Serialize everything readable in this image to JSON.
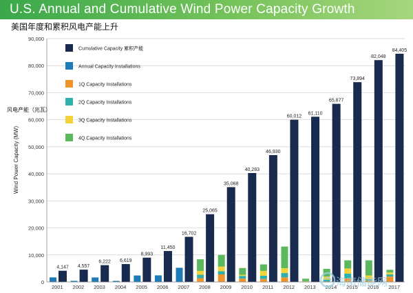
{
  "header": {
    "title": "U.S. Annual and Cumulative Wind Power Capacity Growth",
    "subtitle": "美国年度和累积风电产能上升"
  },
  "watermark": {
    "text": "海南储能网"
  },
  "colors": {
    "banner_start": "#3aa84a",
    "banner_end": "#a6d67d",
    "cumulative": "#182a4e",
    "annual": "#1f7ab8",
    "q1": "#f0932a",
    "q2": "#2fb0ad",
    "q3": "#f3d23a",
    "q4": "#5cb85c"
  },
  "chart_data": {
    "type": "bar",
    "categories": [
      "2001",
      "2002",
      "2003",
      "2004",
      "2005",
      "2006",
      "2007",
      "2008",
      "2009",
      "2010",
      "2011",
      "2012",
      "2013",
      "2014",
      "2015",
      "2016",
      "2017"
    ],
    "ylabel": "Wind Power Capacity (MW)",
    "ylabel_cn": "风电产能（兆瓦）",
    "ylim": [
      0,
      90000
    ],
    "yticks": [
      0,
      10000,
      20000,
      30000,
      40000,
      50000,
      60000,
      70000,
      80000,
      90000
    ],
    "ytick_labels": [
      "0",
      "10,000",
      "20,000",
      "30,000",
      "40,000",
      "50,000",
      "60,000",
      "70,000",
      "80,000",
      "90,000"
    ],
    "grid": true,
    "legend_position": "top-left",
    "series": [
      {
        "name": "Cumulative Capacity 累积产能",
        "key": "cumulative",
        "values": [
          4147,
          4557,
          6222,
          6619,
          8993,
          11450,
          16702,
          25065,
          35068,
          40283,
          46930,
          60012,
          61110,
          65877,
          73894,
          82048,
          84405
        ],
        "labels": [
          "4,147",
          "4,557",
          "6,222",
          "6,619",
          "8,993",
          "11,450",
          "16,702",
          "25,065",
          "35,068",
          "40,283",
          "46,930",
          "60,012",
          "61,110",
          "65,877",
          "73,894",
          "82,048",
          "84,405"
        ]
      },
      {
        "name": "Annual Capacity Installations",
        "key": "annual",
        "values": [
          1700,
          410,
          1670,
          400,
          2400,
          2450,
          5250,
          null,
          null,
          null,
          null,
          null,
          null,
          null,
          null,
          null,
          null
        ]
      },
      {
        "name": "1Q Capacity Installations",
        "key": "q1",
        "values": [
          null,
          null,
          null,
          null,
          null,
          null,
          null,
          1400,
          2800,
          1250,
          1100,
          1700,
          100,
          150,
          1300,
          600,
          2000
        ]
      },
      {
        "name": "2Q Capacity Installations",
        "key": "q2",
        "values": [
          null,
          null,
          null,
          null,
          null,
          null,
          null,
          1300,
          1200,
          1000,
          1200,
          1600,
          100,
          700,
          1800,
          500,
          800
        ]
      },
      {
        "name": "3Q Capacity Installations",
        "key": "q3",
        "values": [
          null,
          null,
          null,
          null,
          null,
          null,
          null,
          1400,
          1700,
          400,
          1800,
          1800,
          100,
          1200,
          1900,
          1300,
          700
        ]
      },
      {
        "name": "4Q Capacity Installations",
        "key": "q4",
        "values": [
          null,
          null,
          null,
          null,
          null,
          null,
          null,
          4300,
          4300,
          2500,
          2400,
          8000,
          900,
          2800,
          3000,
          5600,
          1000
        ]
      }
    ]
  }
}
